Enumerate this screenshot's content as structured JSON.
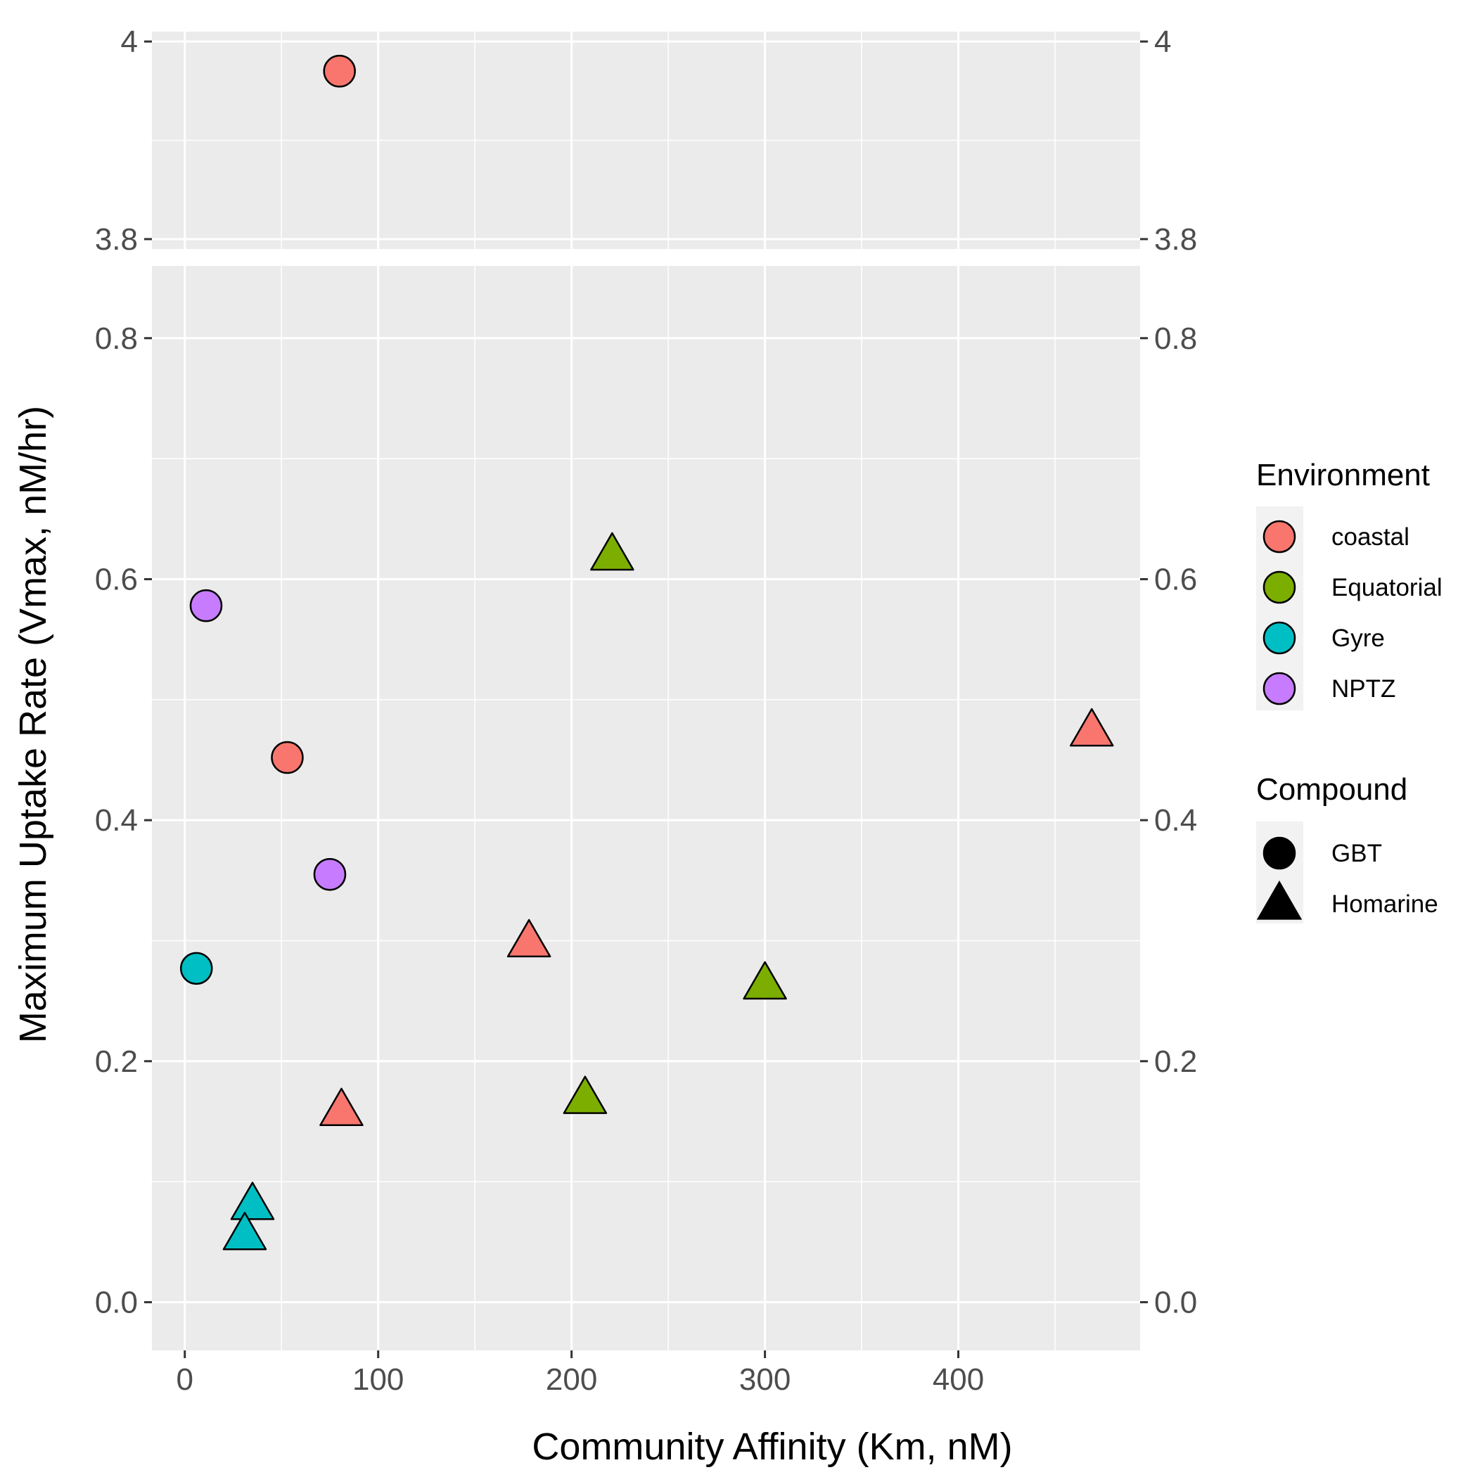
{
  "chart_data": {
    "type": "scatter",
    "xlabel": "Community Affinity (Km, nM)",
    "ylabel": "Maximum Uptake Rate (Vmax, nM/hr)",
    "xlim": [
      -17,
      494
    ],
    "x_ticks": [
      0,
      100,
      200,
      300,
      400
    ],
    "x_tick_labels": [
      "0",
      "100",
      "200",
      "300",
      "400"
    ],
    "y_axis_break": {
      "upper_panel": {
        "ylim": [
          3.79,
          4.01
        ],
        "ticks": [
          3.8,
          4.0
        ],
        "tick_labels": [
          "3.8",
          "4"
        ]
      },
      "lower_panel": {
        "ylim": [
          -0.04,
          0.86
        ],
        "ticks": [
          0.0,
          0.2,
          0.4,
          0.6,
          0.8
        ],
        "tick_labels": [
          "0.0",
          "0.2",
          "0.4",
          "0.6",
          "0.8"
        ]
      }
    },
    "secondary_y_axis": true,
    "grid": true,
    "legend_position": "right",
    "environment_colors": {
      "coastal": "#F8766D",
      "Equatorial": "#7CAE00",
      "Gyre": "#00BFC4",
      "NPTZ": "#C77CFF"
    },
    "compound_shapes": {
      "GBT": "circle",
      "Homarine": "triangle"
    },
    "points": [
      {
        "x": 80,
        "y": 3.97,
        "environment": "coastal",
        "compound": "GBT"
      },
      {
        "x": 53,
        "y": 0.452,
        "environment": "coastal",
        "compound": "GBT"
      },
      {
        "x": 11,
        "y": 0.578,
        "environment": "NPTZ",
        "compound": "GBT"
      },
      {
        "x": 75,
        "y": 0.355,
        "environment": "NPTZ",
        "compound": "GBT"
      },
      {
        "x": 6,
        "y": 0.277,
        "environment": "Gyre",
        "compound": "GBT"
      },
      {
        "x": 221,
        "y": 0.618,
        "environment": "Equatorial",
        "compound": "Homarine"
      },
      {
        "x": 469,
        "y": 0.472,
        "environment": "coastal",
        "compound": "Homarine"
      },
      {
        "x": 178,
        "y": 0.297,
        "environment": "coastal",
        "compound": "Homarine"
      },
      {
        "x": 300,
        "y": 0.262,
        "environment": "Equatorial",
        "compound": "Homarine"
      },
      {
        "x": 207,
        "y": 0.167,
        "environment": "Equatorial",
        "compound": "Homarine"
      },
      {
        "x": 81,
        "y": 0.157,
        "environment": "coastal",
        "compound": "Homarine"
      },
      {
        "x": 35,
        "y": 0.079,
        "environment": "Gyre",
        "compound": "Homarine"
      },
      {
        "x": 31,
        "y": 0.054,
        "environment": "Gyre",
        "compound": "Homarine"
      }
    ]
  },
  "legend": {
    "environment_title": "Environment",
    "environment_items": [
      {
        "label": "coastal",
        "color": "#F8766D"
      },
      {
        "label": "Equatorial",
        "color": "#7CAE00"
      },
      {
        "label": "Gyre",
        "color": "#00BFC4"
      },
      {
        "label": "NPTZ",
        "color": "#C77CFF"
      }
    ],
    "compound_title": "Compound",
    "compound_items": [
      {
        "label": "GBT",
        "shape": "circle"
      },
      {
        "label": "Homarine",
        "shape": "triangle"
      }
    ]
  },
  "colors": {
    "panel_bg": "#EBEBEB",
    "grid": "#FFFFFF",
    "tick": "#333333",
    "point_outline": "#000000"
  }
}
